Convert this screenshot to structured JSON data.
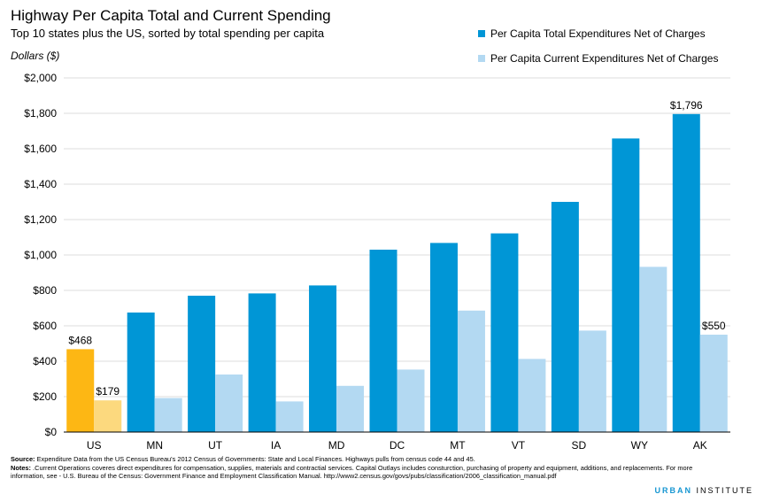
{
  "title": "Highway Per Capita Total and Current Spending",
  "subtitle": "Top 10 states plus the US, sorted by total spending per capita",
  "colors": {
    "total": "#0096d6",
    "current": "#b3d9f2",
    "us_total": "#fdb714",
    "us_current": "#fcd97e"
  },
  "chart_data": {
    "type": "bar",
    "ylabel": "Dollars ($)",
    "ylim": [
      0,
      2000
    ],
    "yticks": [
      "$0",
      "$200",
      "$400",
      "$600",
      "$800",
      "$1,000",
      "$1,200",
      "$1,400",
      "$1,600",
      "$1,800",
      "$2,000"
    ],
    "ytick_values": [
      0,
      200,
      400,
      600,
      800,
      1000,
      1200,
      1400,
      1600,
      1800,
      2000
    ],
    "grid": true,
    "legend_position": "top-right",
    "categories": [
      "US",
      "MN",
      "UT",
      "IA",
      "MD",
      "DC",
      "MT",
      "VT",
      "SD",
      "WY",
      "AK"
    ],
    "series": [
      {
        "name": "Per Capita Total Expenditures Net of Charges",
        "values": [
          468,
          675,
          770,
          783,
          828,
          1030,
          1068,
          1122,
          1300,
          1658,
          1796
        ]
      },
      {
        "name": "Per Capita Current Expenditures Net of Charges",
        "values": [
          179,
          192,
          325,
          173,
          261,
          353,
          686,
          413,
          573,
          933,
          550
        ]
      }
    ],
    "annotations": [
      {
        "category": "US",
        "series": 0,
        "text": "$468"
      },
      {
        "category": "US",
        "series": 1,
        "text": "$179"
      },
      {
        "category": "AK",
        "series": 0,
        "text": "$1,796"
      },
      {
        "category": "AK",
        "series": 1,
        "text": "$550"
      }
    ]
  },
  "footer": {
    "source_label": "Source:",
    "source_text": " Expenditure Data from the US Census Bureau's 2012 Census of Governments: State and Local Finances. Highways pulls from census code 44 and 45.",
    "notes_label": "Notes:",
    "notes_text": " .Current Operations coveres direct expenditures for compensation, supplies, materials and contractial services. Capital Outlays includes consturction, purchasing of property and equipment, additions, and replacements. For more information, see - U.S. Bureau of the Census: Government Finance and Employment Classification Manual. http://www2.census.gov/govs/pubs/classification/2006_classification_manual.pdf"
  },
  "brand": {
    "part1": "URBAN",
    "part2": "INSTITUTE"
  }
}
